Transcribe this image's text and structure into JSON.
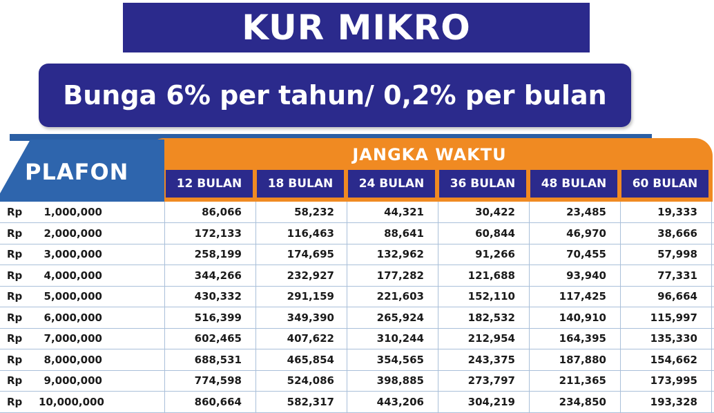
{
  "title": "KUR MIKRO",
  "subtitle": "Bunga 6% per tahun/ 0,2% per bulan",
  "plafon_label": "PLAFON",
  "jangka_label": "JANGKA WAKTU",
  "columns": [
    "12 BULAN",
    "18 BULAN",
    "24 BULAN",
    "36 BULAN",
    "48 BULAN",
    "60 BULAN"
  ],
  "currency": "Rp",
  "rows": [
    {
      "plafon": "1,000,000",
      "values": [
        "86,066",
        "58,232",
        "44,321",
        "30,422",
        "23,485",
        "19,333"
      ]
    },
    {
      "plafon": "2,000,000",
      "values": [
        "172,133",
        "116,463",
        "88,641",
        "60,844",
        "46,970",
        "38,666"
      ]
    },
    {
      "plafon": "3,000,000",
      "values": [
        "258,199",
        "174,695",
        "132,962",
        "91,266",
        "70,455",
        "57,998"
      ]
    },
    {
      "plafon": "4,000,000",
      "values": [
        "344,266",
        "232,927",
        "177,282",
        "121,688",
        "93,940",
        "77,331"
      ]
    },
    {
      "plafon": "5,000,000",
      "values": [
        "430,332",
        "291,159",
        "221,603",
        "152,110",
        "117,425",
        "96,664"
      ]
    },
    {
      "plafon": "6,000,000",
      "values": [
        "516,399",
        "349,390",
        "265,924",
        "182,532",
        "140,910",
        "115,997"
      ]
    },
    {
      "plafon": "7,000,000",
      "values": [
        "602,465",
        "407,622",
        "310,244",
        "212,954",
        "164,395",
        "135,330"
      ]
    },
    {
      "plafon": "8,000,000",
      "values": [
        "688,531",
        "465,854",
        "354,565",
        "243,375",
        "187,880",
        "154,662"
      ]
    },
    {
      "plafon": "9,000,000",
      "values": [
        "774,598",
        "524,086",
        "398,885",
        "273,797",
        "211,365",
        "173,995"
      ]
    },
    {
      "plafon": "10,000,000",
      "values": [
        "860,664",
        "582,317",
        "443,206",
        "304,219",
        "234,850",
        "193,328"
      ]
    }
  ],
  "colors": {
    "navy": "#2b2a8c",
    "blue": "#2e65ad",
    "orange": "#f08a22",
    "grid": "#a9bfd9"
  }
}
